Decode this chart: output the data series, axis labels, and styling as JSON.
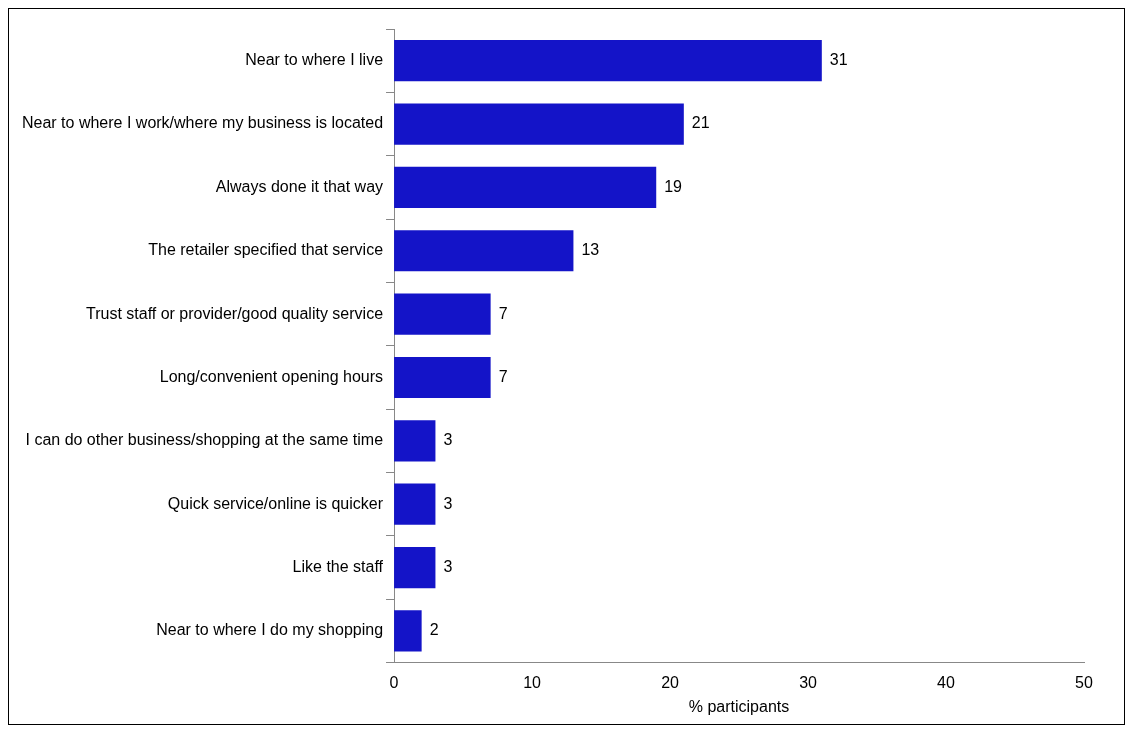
{
  "chart_data": {
    "type": "bar",
    "orientation": "horizontal",
    "xlabel": "% participants",
    "categories": [
      "Near to where I live",
      "Near to where I work/where my business is located",
      "Always done it that way",
      "The retailer specified that service",
      "Trust staff or provider/good quality service",
      "Long/convenient opening hours",
      "I can do other business/shopping at the same time",
      "Quick service/online is quicker",
      "Like the staff",
      "Near to where I do my shopping"
    ],
    "values": [
      31,
      21,
      19,
      13,
      7,
      7,
      3,
      3,
      3,
      2
    ],
    "color": "#1414c8",
    "xlim": [
      0,
      50
    ],
    "xticks": [
      0,
      10,
      20,
      30,
      40,
      50
    ],
    "data_labels": true,
    "grid": false,
    "legend": false
  }
}
